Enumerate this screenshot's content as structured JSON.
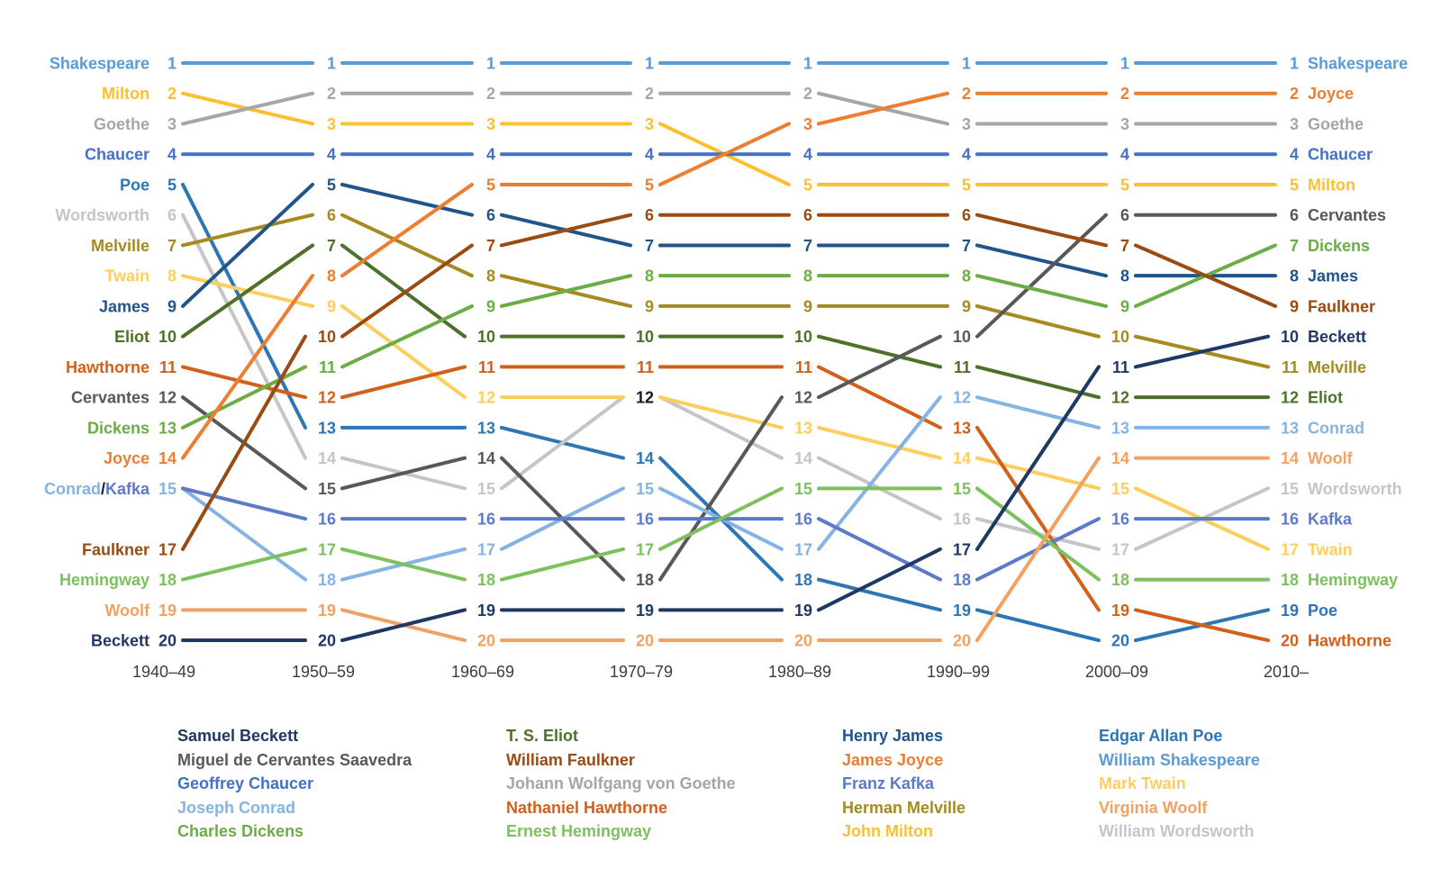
{
  "chart_data": {
    "type": "bump",
    "title": "",
    "x_axis_labels": [
      "1940–49",
      "1950–59",
      "1960–69",
      "1970–79",
      "1980–89",
      "1990–99",
      "2000–09",
      "2010–"
    ],
    "rank_range": [
      1,
      20
    ],
    "grid": false,
    "authors": [
      {
        "name": "Shakespeare",
        "full_name": "William Shakespeare",
        "color": "#5B9BD5",
        "ranks": [
          1,
          1,
          1,
          1,
          1,
          1,
          1,
          1
        ]
      },
      {
        "name": "Milton",
        "full_name": "John Milton",
        "color": "#FCBF2F",
        "ranks": [
          2,
          3,
          3,
          3,
          5,
          5,
          5,
          5
        ]
      },
      {
        "name": "Goethe",
        "full_name": "Johann Wolfgang von Goethe",
        "color": "#A6A6A6",
        "ranks": [
          3,
          2,
          2,
          2,
          2,
          3,
          3,
          3
        ]
      },
      {
        "name": "Chaucer",
        "full_name": "Geoffrey Chaucer",
        "color": "#4472C4",
        "ranks": [
          4,
          4,
          4,
          4,
          4,
          4,
          4,
          4
        ]
      },
      {
        "name": "Poe",
        "full_name": "Edgar Allan Poe",
        "color": "#2E75B6",
        "ranks": [
          5,
          13,
          13,
          14,
          18,
          19,
          20,
          19
        ]
      },
      {
        "name": "Wordsworth",
        "full_name": "William Wordsworth",
        "color": "#C5C5C5",
        "ranks": [
          6,
          14,
          15,
          12,
          14,
          16,
          17,
          15
        ]
      },
      {
        "name": "Melville",
        "full_name": "Herman Melville",
        "color": "#A68A1F",
        "ranks": [
          7,
          6,
          8,
          9,
          9,
          9,
          10,
          11
        ]
      },
      {
        "name": "Twain",
        "full_name": "Mark Twain",
        "color": "#FDCE5D",
        "ranks": [
          8,
          9,
          12,
          12,
          13,
          14,
          15,
          17
        ]
      },
      {
        "name": "James",
        "full_name": "Henry James",
        "color": "#20558A",
        "ranks": [
          9,
          5,
          6,
          7,
          7,
          7,
          8,
          8
        ]
      },
      {
        "name": "Eliot",
        "full_name": "T. S. Eliot",
        "color": "#4D7128",
        "ranks": [
          10,
          7,
          10,
          10,
          10,
          11,
          12,
          12
        ]
      },
      {
        "name": "Hawthorne",
        "full_name": "Nathaniel Hawthorne",
        "color": "#D2601A",
        "ranks": [
          11,
          12,
          11,
          11,
          11,
          13,
          19,
          20
        ]
      },
      {
        "name": "Cervantes",
        "full_name": "Miguel de Cervantes Saavedra",
        "color": "#58585A",
        "ranks": [
          12,
          15,
          14,
          18,
          12,
          10,
          6,
          6
        ]
      },
      {
        "name": "Dickens",
        "full_name": "Charles Dickens",
        "color": "#6BAD45",
        "ranks": [
          13,
          11,
          9,
          8,
          8,
          8,
          9,
          7
        ]
      },
      {
        "name": "Joyce",
        "full_name": "James Joyce",
        "color": "#ED7D31",
        "ranks": [
          14,
          8,
          5,
          5,
          3,
          2,
          2,
          2
        ]
      },
      {
        "name": "Conrad",
        "full_name": "Joseph Conrad",
        "color": "#85B3E2",
        "ranks": [
          15,
          18,
          17,
          15,
          17,
          12,
          13,
          13
        ]
      },
      {
        "name": "Kafka",
        "full_name": "Franz Kafka",
        "color": "#5E79C9",
        "ranks": [
          15,
          16,
          16,
          16,
          16,
          18,
          16,
          16
        ]
      },
      {
        "name": "Faulkner",
        "full_name": "William Faulkner",
        "color": "#9B4A12",
        "ranks": [
          17,
          10,
          7,
          6,
          6,
          6,
          7,
          9
        ]
      },
      {
        "name": "Hemingway",
        "full_name": "Ernest Hemingway",
        "color": "#7DC15E",
        "ranks": [
          18,
          17,
          18,
          17,
          15,
          15,
          18,
          18
        ]
      },
      {
        "name": "Woolf",
        "full_name": "Virginia Woolf",
        "color": "#F1A263",
        "ranks": [
          19,
          19,
          20,
          20,
          20,
          20,
          14,
          14
        ]
      },
      {
        "name": "Beckett",
        "full_name": "Samuel Beckett",
        "color": "#1F3864",
        "ranks": [
          20,
          20,
          19,
          19,
          19,
          17,
          11,
          10
        ]
      }
    ],
    "ties": [
      {
        "decade_index": 0,
        "rank": 15,
        "authors": [
          "Conrad",
          "Kafka"
        ],
        "label_color": "#85B3E2"
      },
      {
        "decade_index": 3,
        "rank": 12,
        "authors": [
          "Twain",
          "Wordsworth"
        ],
        "label_color": "#1A1A1A"
      }
    ],
    "tie_separator": "/",
    "axis_label_color": "#3C3C3C"
  },
  "legend": {
    "columns": [
      [
        "Beckett",
        "Cervantes",
        "Chaucer",
        "Conrad",
        "Dickens"
      ],
      [
        "Eliot",
        "Faulkner",
        "Goethe",
        "Hawthorne",
        "Hemingway"
      ],
      [
        "James",
        "Joyce",
        "Kafka",
        "Melville",
        "Milton"
      ],
      [
        "Poe",
        "Shakespeare",
        "Twain",
        "Woolf",
        "Wordsworth"
      ]
    ]
  }
}
